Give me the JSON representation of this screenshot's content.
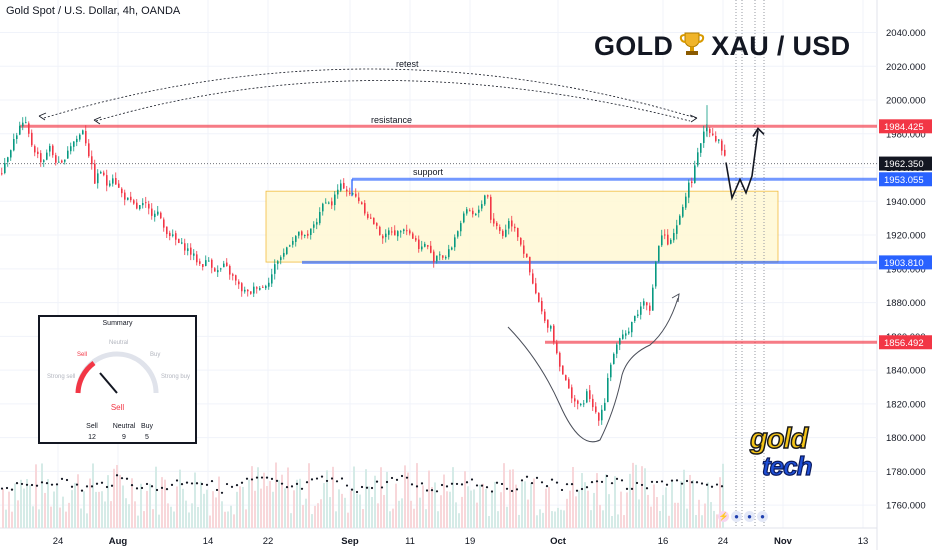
{
  "symbol_title": "Gold Spot / U.S. Dollar, 4h, OANDA",
  "headline": {
    "left": "GOLD",
    "icon": "trophy-icon",
    "right": "XAU / USD"
  },
  "annotations": {
    "retest": "retest",
    "resistance": "resistance",
    "support": "support"
  },
  "summary_panel": {
    "title": "Summary",
    "labels": {
      "strong_sell": "Strong sell",
      "sell": "Sell",
      "neutral": "Neutral",
      "buy": "Buy",
      "strong_buy": "Strong buy"
    },
    "verdict": "Sell",
    "counts": [
      {
        "label": "Sell",
        "value": "12"
      },
      {
        "label": "Neutral",
        "value": "9"
      },
      {
        "label": "Buy",
        "value": "5"
      }
    ]
  },
  "logo": {
    "line1": "gold",
    "line2": "tech"
  },
  "colors": {
    "up": "#089981",
    "down": "#f23645",
    "support_line": "#2962ff",
    "resistance_line": "#f23645",
    "zone_fill": "#fff9d6",
    "zone_border": "#f0b429"
  },
  "chart_data": {
    "type": "candlestick",
    "title": "Gold Spot / U.S. Dollar, 4h, OANDA",
    "x_ticks": [
      "24",
      "Aug",
      "14",
      "22",
      "Sep",
      "11",
      "19",
      "Oct",
      "16",
      "24",
      "Nov",
      "13"
    ],
    "y_ticks": [
      "2040.000",
      "2020.000",
      "2000.000",
      "1980.000",
      "1960.000",
      "1940.000",
      "1920.000",
      "1900.000",
      "1880.000",
      "1860.000",
      "1840.000",
      "1820.000",
      "1800.000",
      "1780.000",
      "1760.000"
    ],
    "ylim": [
      1752,
      2050
    ],
    "price_path": [
      [
        0,
        1957
      ],
      [
        6,
        1966
      ],
      [
        12,
        1975
      ],
      [
        18,
        1983
      ],
      [
        24,
        1987
      ],
      [
        30,
        1975
      ],
      [
        36,
        1968
      ],
      [
        42,
        1963
      ],
      [
        48,
        1973
      ],
      [
        54,
        1965
      ],
      [
        60,
        1960
      ],
      [
        66,
        1970
      ],
      [
        72,
        1975
      ],
      [
        78,
        1978
      ],
      [
        82,
        1983
      ],
      [
        88,
        1968
      ],
      [
        94,
        1952
      ],
      [
        100,
        1958
      ],
      [
        106,
        1950
      ],
      [
        112,
        1955
      ],
      [
        120,
        1945
      ],
      [
        128,
        1940
      ],
      [
        136,
        1936
      ],
      [
        144,
        1938
      ],
      [
        150,
        1933
      ],
      [
        156,
        1935
      ],
      [
        162,
        1925
      ],
      [
        170,
        1920
      ],
      [
        178,
        1915
      ],
      [
        186,
        1912
      ],
      [
        192,
        1908
      ],
      [
        200,
        1902
      ],
      [
        208,
        1905
      ],
      [
        216,
        1898
      ],
      [
        224,
        1902
      ],
      [
        232,
        1895
      ],
      [
        240,
        1888
      ],
      [
        248,
        1885
      ],
      [
        256,
        1890
      ],
      [
        262,
        1889
      ],
      [
        270,
        1895
      ],
      [
        276,
        1905
      ],
      [
        282,
        1908
      ],
      [
        288,
        1915
      ],
      [
        294,
        1919
      ],
      [
        300,
        1921
      ],
      [
        306,
        1917
      ],
      [
        312,
        1926
      ],
      [
        318,
        1930
      ],
      [
        324,
        1942
      ],
      [
        330,
        1937
      ],
      [
        336,
        1946
      ],
      [
        342,
        1950
      ],
      [
        348,
        1945
      ],
      [
        354,
        1943
      ],
      [
        360,
        1940
      ],
      [
        366,
        1932
      ],
      [
        372,
        1928
      ],
      [
        378,
        1922
      ],
      [
        384,
        1918
      ],
      [
        390,
        1924
      ],
      [
        396,
        1920
      ],
      [
        402,
        1926
      ],
      [
        408,
        1922
      ],
      [
        414,
        1917
      ],
      [
        420,
        1912
      ],
      [
        426,
        1915
      ],
      [
        432,
        1905
      ],
      [
        438,
        1910
      ],
      [
        444,
        1906
      ],
      [
        450,
        1912
      ],
      [
        456,
        1922
      ],
      [
        462,
        1930
      ],
      [
        468,
        1935
      ],
      [
        474,
        1930
      ],
      [
        480,
        1938
      ],
      [
        486,
        1947
      ],
      [
        490,
        1930
      ],
      [
        496,
        1925
      ],
      [
        502,
        1920
      ],
      [
        508,
        1928
      ],
      [
        514,
        1925
      ],
      [
        520,
        1915
      ],
      [
        526,
        1905
      ],
      [
        532,
        1890
      ],
      [
        538,
        1880
      ],
      [
        544,
        1868
      ],
      [
        550,
        1866
      ],
      [
        556,
        1850
      ],
      [
        562,
        1838
      ],
      [
        568,
        1828
      ],
      [
        574,
        1822
      ],
      [
        580,
        1818
      ],
      [
        586,
        1826
      ],
      [
        592,
        1818
      ],
      [
        598,
        1812
      ],
      [
        604,
        1822
      ],
      [
        608,
        1840
      ],
      [
        614,
        1852
      ],
      [
        620,
        1858
      ],
      [
        626,
        1862
      ],
      [
        632,
        1870
      ],
      [
        638,
        1875
      ],
      [
        644,
        1882
      ],
      [
        650,
        1876
      ],
      [
        656,
        1910
      ],
      [
        662,
        1922
      ],
      [
        668,
        1913
      ],
      [
        674,
        1921
      ],
      [
        680,
        1932
      ],
      [
        686,
        1947
      ],
      [
        692,
        1954
      ],
      [
        698,
        1970
      ],
      [
        704,
        1985
      ],
      [
        708,
        1983
      ],
      [
        714,
        1978
      ],
      [
        718,
        1975
      ],
      [
        722,
        1970
      ],
      [
        726,
        1963
      ]
    ],
    "levels": [
      {
        "name": "resistance",
        "price": 1984.425,
        "label": "1984.425"
      },
      {
        "name": "support",
        "price": 1953.055,
        "label": "1953.055"
      },
      {
        "name": "support-lower",
        "price": 1903.81,
        "label": "1903.810"
      },
      {
        "name": "low-level",
        "price": 1856.492,
        "label": "1856.492"
      }
    ],
    "last_price": {
      "price": 1962.35,
      "label": "1962.350"
    },
    "zone": {
      "from": 1904,
      "to": 1946
    },
    "projection": [
      [
        726,
        1963
      ],
      [
        732,
        1942
      ],
      [
        740,
        1953
      ],
      [
        746,
        1945
      ],
      [
        752,
        1955
      ],
      [
        758,
        1982
      ]
    ],
    "indicator": {
      "name": "Summary",
      "verdict": "Sell",
      "sell": 12,
      "neutral": 9,
      "buy": 5
    }
  }
}
